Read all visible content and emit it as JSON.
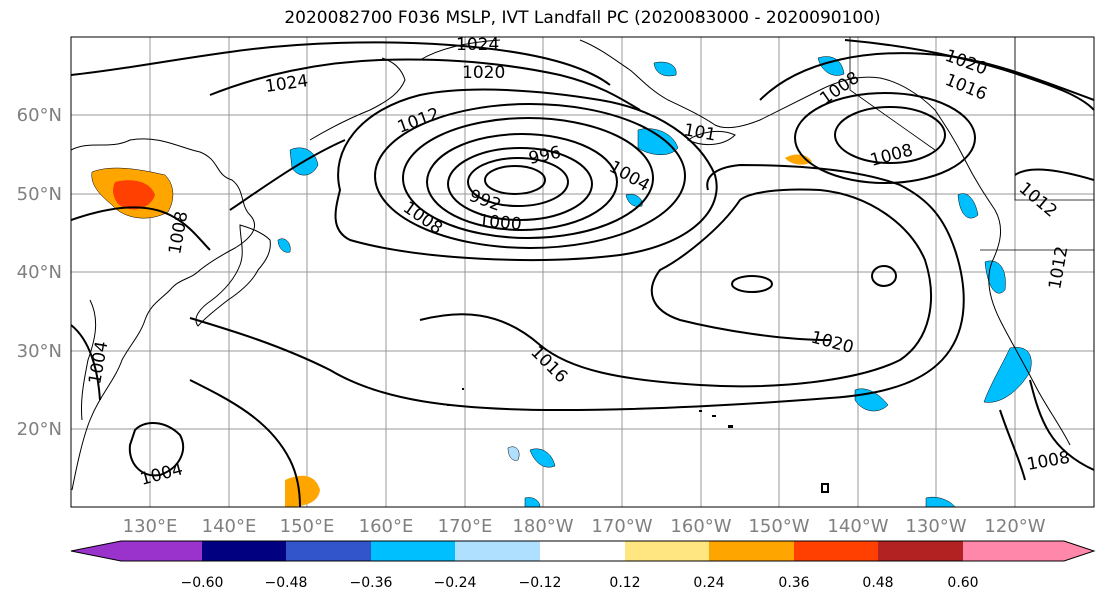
{
  "title": "2020082700 F036 MSLP, IVT Landfall PC (2020083000 - 2020090100)",
  "lat_labels": [
    "60°N",
    "50°N",
    "40°N",
    "30°N",
    "20°N"
  ],
  "lon_labels": [
    "130°E",
    "140°E",
    "150°E",
    "160°E",
    "170°E",
    "180°W",
    "170°W",
    "160°W",
    "150°W",
    "140°W",
    "130°W",
    "120°W"
  ],
  "contour_labels": [
    "1024",
    "1020",
    "1024",
    "1012",
    "996",
    "1004",
    "992",
    "1000",
    "1008",
    "1008",
    "1016",
    "1020",
    "1004",
    "1004",
    "1008",
    "1020",
    "1016",
    "1008",
    "101",
    "1012",
    "1012",
    "1008"
  ],
  "colorbar": {
    "ticks": [
      "−0.60",
      "−0.48",
      "−0.36",
      "−0.24",
      "−0.12",
      "0.12",
      "0.24",
      "0.36",
      "0.48",
      "0.60"
    ],
    "colors": [
      "#9933cc",
      "#000080",
      "#3355cc",
      "#00bfff",
      "#b0e0ff",
      "#ffffff",
      "#ffe680",
      "#ffa500",
      "#ff4000",
      "#b22222",
      "#ff88aa"
    ]
  },
  "colors": {
    "land_line": "#000000",
    "grid": "#999999"
  }
}
